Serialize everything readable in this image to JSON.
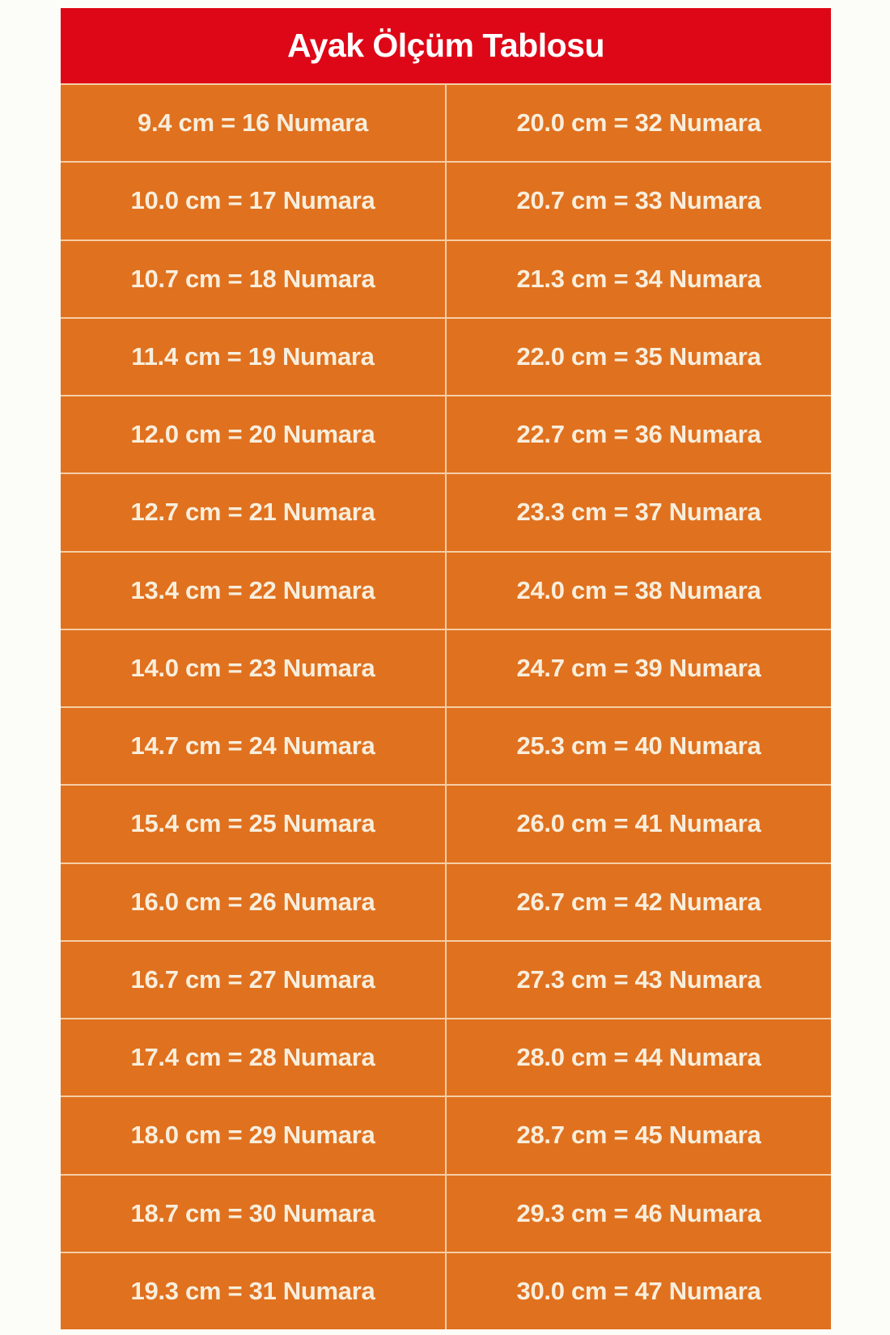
{
  "header": {
    "title": "Ayak Ölçüm Tablosu"
  },
  "colors": {
    "header_bg": "#DE0717",
    "body_bg": "#E0711F",
    "text": "#F8EEDC",
    "divider": "#FCEED6",
    "page_bg": "#FCFCF9"
  },
  "table": {
    "rows": [
      {
        "left": "9.4 cm = 16 Numara",
        "right": "20.0 cm = 32 Numara"
      },
      {
        "left": "10.0 cm = 17 Numara",
        "right": "20.7 cm = 33 Numara"
      },
      {
        "left": "10.7 cm = 18 Numara",
        "right": "21.3 cm = 34 Numara"
      },
      {
        "left": "11.4 cm = 19 Numara",
        "right": "22.0 cm = 35 Numara"
      },
      {
        "left": "12.0 cm = 20 Numara",
        "right": "22.7 cm = 36 Numara"
      },
      {
        "left": "12.7 cm = 21 Numara",
        "right": "23.3 cm = 37 Numara"
      },
      {
        "left": "13.4 cm = 22 Numara",
        "right": "24.0 cm = 38 Numara"
      },
      {
        "left": "14.0 cm = 23 Numara",
        "right": "24.7 cm = 39 Numara"
      },
      {
        "left": "14.7 cm = 24 Numara",
        "right": "25.3 cm = 40 Numara"
      },
      {
        "left": "15.4 cm = 25 Numara",
        "right": "26.0 cm = 41 Numara"
      },
      {
        "left": "16.0 cm = 26 Numara",
        "right": "26.7 cm = 42 Numara"
      },
      {
        "left": "16.7 cm = 27 Numara",
        "right": "27.3 cm = 43 Numara"
      },
      {
        "left": "17.4 cm = 28 Numara",
        "right": "28.0 cm = 44 Numara"
      },
      {
        "left": "18.0 cm = 29 Numara",
        "right": "28.7 cm = 45 Numara"
      },
      {
        "left": "18.7 cm = 30 Numara",
        "right": "29.3 cm = 46 Numara"
      },
      {
        "left": "19.3 cm = 31 Numara",
        "right": "30.0 cm = 47 Numara"
      }
    ]
  },
  "chart_data": {
    "type": "table",
    "title": "Ayak Ölçüm Tablosu",
    "columns": [
      "cm",
      "Numara"
    ],
    "entries": [
      {
        "cm": 9.4,
        "numara": 16
      },
      {
        "cm": 10.0,
        "numara": 17
      },
      {
        "cm": 10.7,
        "numara": 18
      },
      {
        "cm": 11.4,
        "numara": 19
      },
      {
        "cm": 12.0,
        "numara": 20
      },
      {
        "cm": 12.7,
        "numara": 21
      },
      {
        "cm": 13.4,
        "numara": 22
      },
      {
        "cm": 14.0,
        "numara": 23
      },
      {
        "cm": 14.7,
        "numara": 24
      },
      {
        "cm": 15.4,
        "numara": 25
      },
      {
        "cm": 16.0,
        "numara": 26
      },
      {
        "cm": 16.7,
        "numara": 27
      },
      {
        "cm": 17.4,
        "numara": 28
      },
      {
        "cm": 18.0,
        "numara": 29
      },
      {
        "cm": 18.7,
        "numara": 30
      },
      {
        "cm": 19.3,
        "numara": 31
      },
      {
        "cm": 20.0,
        "numara": 32
      },
      {
        "cm": 20.7,
        "numara": 33
      },
      {
        "cm": 21.3,
        "numara": 34
      },
      {
        "cm": 22.0,
        "numara": 35
      },
      {
        "cm": 22.7,
        "numara": 36
      },
      {
        "cm": 23.3,
        "numara": 37
      },
      {
        "cm": 24.0,
        "numara": 38
      },
      {
        "cm": 24.7,
        "numara": 39
      },
      {
        "cm": 25.3,
        "numara": 40
      },
      {
        "cm": 26.0,
        "numara": 41
      },
      {
        "cm": 26.7,
        "numara": 42
      },
      {
        "cm": 27.3,
        "numara": 43
      },
      {
        "cm": 28.0,
        "numara": 44
      },
      {
        "cm": 28.7,
        "numara": 45
      },
      {
        "cm": 29.3,
        "numara": 46
      },
      {
        "cm": 30.0,
        "numara": 47
      }
    ]
  }
}
